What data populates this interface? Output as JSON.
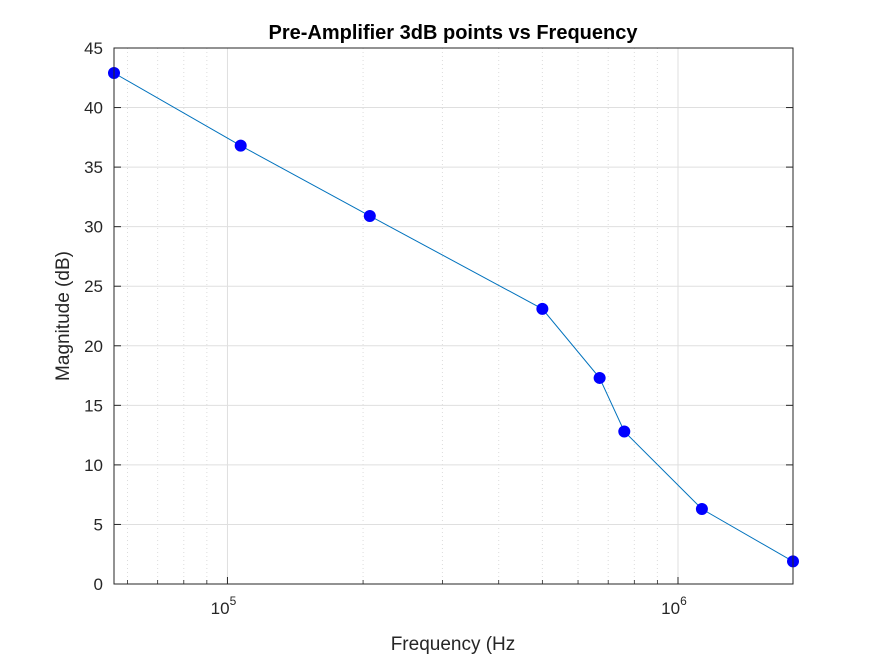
{
  "chart_data": {
    "type": "line",
    "title": "Pre-Amplifier 3dB points vs Frequency",
    "xlabel": "Frequency (Hz",
    "ylabel": "Magnitude (dB)",
    "x_scale": "log",
    "xlim": [
      56000,
      1800000
    ],
    "ylim": [
      0,
      45
    ],
    "y_ticks": [
      0,
      5,
      10,
      15,
      20,
      25,
      30,
      35,
      40,
      45
    ],
    "x_ticks": [
      {
        "value": 100000,
        "base": "10",
        "exp": "5"
      },
      {
        "value": 1000000,
        "base": "10",
        "exp": "6"
      }
    ],
    "grid": true,
    "series": [
      {
        "color": "#0072BD",
        "marker_color": "#0000FF",
        "marker": "circle",
        "x": [
          56000,
          107000,
          207000,
          500000,
          670000,
          760000,
          1130000,
          1800000
        ],
        "y": [
          42.9,
          36.8,
          30.9,
          23.1,
          17.3,
          12.8,
          6.3,
          1.9
        ]
      }
    ]
  }
}
